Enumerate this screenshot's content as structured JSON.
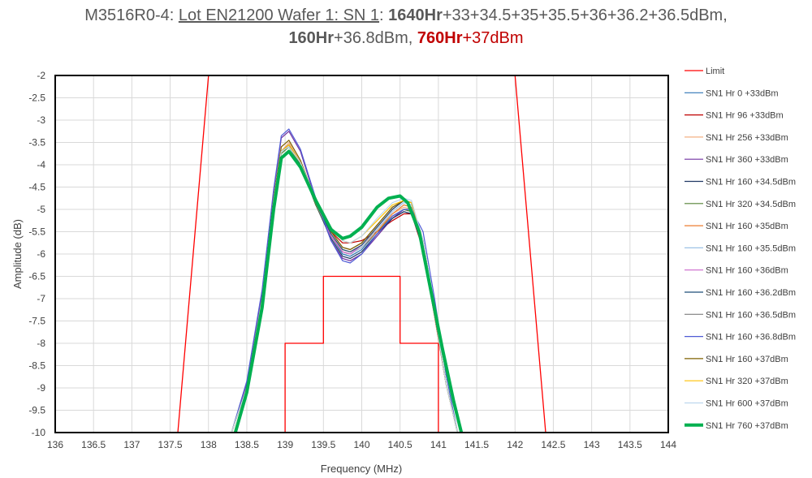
{
  "title": {
    "prefix": "M3516R0-4: ",
    "lot": "Lot EN21200 Wafer 1: SN 1",
    "sep": ": ",
    "hr1": "1640Hr",
    "rest1": "+33+34.5+35+35.5+36+36.2+36.5dBm,",
    "hr2": "160Hr",
    "rest2": "+36.8dBm, ",
    "hr3": "760Hr",
    "rest3": "+37dBm"
  },
  "chart_data": {
    "type": "line",
    "xlabel": "Frequency (MHz)",
    "ylabel": "Amplitude (dB)",
    "xlim": [
      136,
      144
    ],
    "ylim": [
      -10,
      -2
    ],
    "xticks": [
      "136",
      "136.5",
      "137",
      "137.5",
      "138",
      "138.5",
      "139",
      "139.5",
      "140",
      "140.5",
      "141",
      "141.5",
      "142",
      "142.5",
      "143",
      "143.5",
      "144"
    ],
    "yticks": [
      "-2",
      "-2.5",
      "-3",
      "-3.5",
      "-4",
      "-4.5",
      "-5",
      "-5.5",
      "-6",
      "-6.5",
      "-7",
      "-7.5",
      "-8",
      "-8.5",
      "-9",
      "-9.5",
      "-10"
    ],
    "grid": true,
    "legend_position": "right",
    "series": [
      {
        "name": "Limit",
        "color": "#ff0000",
        "width": 1.3,
        "x": [
          137.6,
          138.0,
          142.0,
          142.4
        ],
        "y": [
          -10,
          -2,
          -2,
          -10
        ]
      },
      {
        "name": "Limit",
        "color": "#ff0000",
        "width": 1.3,
        "legend": false,
        "x": [
          139.0,
          139.0,
          139.5,
          139.5,
          140.5,
          140.5,
          141.0,
          141.0
        ],
        "y": [
          -10,
          -8,
          -8,
          -6.5,
          -6.5,
          -8,
          -8,
          -10
        ]
      },
      {
        "name": "SN1 Hr 0 +33dBm",
        "color": "#2e75b6",
        "width": 1.2,
        "x": [
          138.3,
          138.5,
          138.7,
          138.85,
          138.95,
          139.05,
          139.2,
          139.4,
          139.6,
          139.75,
          139.85,
          140.0,
          140.2,
          140.4,
          140.55,
          140.65,
          140.8,
          140.95,
          141.1,
          141.25
        ],
        "y": [
          -10,
          -9.0,
          -7.0,
          -4.8,
          -3.7,
          -3.6,
          -4.0,
          -4.9,
          -5.6,
          -6.0,
          -6.05,
          -5.9,
          -5.5,
          -5.2,
          -5.05,
          -5.1,
          -5.8,
          -7.3,
          -8.9,
          -10
        ]
      },
      {
        "name": "SN1 Hr 96 +33dBm",
        "color": "#c00000",
        "width": 1.2,
        "x": [
          138.3,
          138.5,
          138.7,
          138.85,
          138.95,
          139.05,
          139.2,
          139.4,
          139.6,
          139.75,
          139.85,
          140.0,
          140.2,
          140.4,
          140.55,
          140.65,
          140.8,
          140.95,
          141.1,
          141.25
        ],
        "y": [
          -10,
          -9.0,
          -7.0,
          -4.8,
          -3.7,
          -3.55,
          -3.95,
          -4.9,
          -5.5,
          -5.75,
          -5.75,
          -5.7,
          -5.5,
          -5.25,
          -5.1,
          -5.1,
          -5.9,
          -7.4,
          -8.9,
          -10
        ]
      },
      {
        "name": "SN1 Hr 256 +33dBm",
        "color": "#f4b183",
        "width": 1.2,
        "x": [
          138.3,
          138.5,
          138.7,
          138.85,
          138.95,
          139.05,
          139.2,
          139.4,
          139.6,
          139.75,
          139.85,
          140.0,
          140.2,
          140.4,
          140.55,
          140.65,
          140.8,
          140.95,
          141.1,
          141.25
        ],
        "y": [
          -10,
          -9.0,
          -7.0,
          -4.8,
          -3.7,
          -3.5,
          -3.95,
          -4.9,
          -5.6,
          -5.9,
          -5.95,
          -5.8,
          -5.45,
          -5.1,
          -4.95,
          -5.0,
          -5.8,
          -7.4,
          -8.9,
          -10
        ]
      },
      {
        "name": "SN1 Hr 360 +33dBm",
        "color": "#7030a0",
        "width": 1.2,
        "x": [
          138.3,
          138.5,
          138.7,
          138.85,
          138.95,
          139.05,
          139.2,
          139.4,
          139.6,
          139.75,
          139.85,
          140.0,
          140.2,
          140.4,
          140.55,
          140.65,
          140.8,
          140.95,
          141.1,
          141.25
        ],
        "y": [
          -10,
          -8.9,
          -6.9,
          -4.6,
          -3.4,
          -3.25,
          -3.7,
          -4.8,
          -5.7,
          -6.1,
          -6.15,
          -6.0,
          -5.6,
          -5.2,
          -5.0,
          -5.05,
          -5.8,
          -7.3,
          -8.9,
          -10
        ]
      },
      {
        "name": "SN1 Hr 160 +34.5dBm",
        "color": "#203864",
        "width": 1.2,
        "x": [
          138.3,
          138.5,
          138.7,
          138.85,
          138.95,
          139.05,
          139.2,
          139.4,
          139.6,
          139.75,
          139.85,
          140.0,
          140.2,
          140.4,
          140.55,
          140.65,
          140.8,
          140.95,
          141.1,
          141.25
        ],
        "y": [
          -10,
          -9.0,
          -7.0,
          -4.8,
          -3.7,
          -3.55,
          -4.0,
          -4.9,
          -5.65,
          -6.05,
          -6.1,
          -5.95,
          -5.55,
          -5.2,
          -5.05,
          -5.1,
          -5.85,
          -7.35,
          -8.9,
          -10
        ]
      },
      {
        "name": "SN1 Hr 320 +34.5dBm",
        "color": "#548235",
        "width": 1.2,
        "x": [
          138.3,
          138.5,
          138.7,
          138.85,
          138.95,
          139.05,
          139.2,
          139.4,
          139.6,
          139.75,
          139.85,
          140.0,
          140.2,
          140.4,
          140.55,
          140.65,
          140.8,
          140.95,
          141.1,
          141.25
        ],
        "y": [
          -10,
          -9.0,
          -7.0,
          -4.85,
          -3.75,
          -3.6,
          -4.0,
          -4.9,
          -5.6,
          -5.95,
          -6.0,
          -5.85,
          -5.5,
          -5.15,
          -5.0,
          -5.05,
          -5.8,
          -7.3,
          -8.9,
          -10
        ]
      },
      {
        "name": "SN1 Hr 160 +35dBm",
        "color": "#ed7d31",
        "width": 1.2,
        "x": [
          138.3,
          138.5,
          138.7,
          138.85,
          138.95,
          139.05,
          139.2,
          139.4,
          139.6,
          139.75,
          139.85,
          140.0,
          140.2,
          140.4,
          140.55,
          140.65,
          140.8,
          140.95,
          141.1,
          141.25
        ],
        "y": [
          -10,
          -9.0,
          -7.0,
          -4.8,
          -3.7,
          -3.55,
          -3.95,
          -4.85,
          -5.6,
          -5.95,
          -6.0,
          -5.85,
          -5.5,
          -5.1,
          -4.9,
          -4.95,
          -5.75,
          -7.3,
          -8.9,
          -10
        ]
      },
      {
        "name": "SN1 Hr 160 +35.5dBm",
        "color": "#9dc3e6",
        "width": 1.2,
        "x": [
          138.3,
          138.5,
          138.7,
          138.85,
          138.95,
          139.05,
          139.2,
          139.4,
          139.6,
          139.75,
          139.85,
          140.0,
          140.2,
          140.4,
          140.55,
          140.65,
          140.8,
          140.95,
          141.1,
          141.25
        ],
        "y": [
          -10,
          -9.0,
          -7.0,
          -4.8,
          -3.7,
          -3.55,
          -3.95,
          -4.85,
          -5.6,
          -5.95,
          -6.0,
          -5.85,
          -5.45,
          -5.05,
          -4.85,
          -4.9,
          -5.75,
          -7.3,
          -8.9,
          -10
        ]
      },
      {
        "name": "SN1 Hr 160 +36dBm",
        "color": "#cc66cc",
        "width": 1.2,
        "x": [
          138.3,
          138.5,
          138.7,
          138.85,
          138.95,
          139.05,
          139.2,
          139.4,
          139.6,
          139.75,
          139.85,
          140.0,
          140.2,
          140.4,
          140.55,
          140.65,
          140.8,
          140.95,
          141.1,
          141.25
        ],
        "y": [
          -10,
          -9.0,
          -7.0,
          -4.8,
          -3.7,
          -3.55,
          -3.95,
          -4.85,
          -5.6,
          -5.95,
          -6.0,
          -5.8,
          -5.4,
          -5.0,
          -4.8,
          -4.85,
          -5.7,
          -7.3,
          -8.9,
          -10
        ]
      },
      {
        "name": "SN1 Hr 160 +36.2dBm",
        "color": "#1f4e79",
        "width": 1.2,
        "x": [
          138.3,
          138.5,
          138.7,
          138.85,
          138.95,
          139.05,
          139.2,
          139.4,
          139.6,
          139.75,
          139.85,
          140.0,
          140.2,
          140.4,
          140.55,
          140.65,
          140.8,
          140.95,
          141.1,
          141.25
        ],
        "y": [
          -10,
          -9.0,
          -7.0,
          -4.8,
          -3.7,
          -3.55,
          -3.95,
          -4.85,
          -5.55,
          -5.9,
          -5.95,
          -5.8,
          -5.4,
          -5.0,
          -4.8,
          -4.85,
          -5.7,
          -7.3,
          -8.9,
          -10
        ]
      },
      {
        "name": "SN1 Hr 160 +36.5dBm",
        "color": "#7f7f7f",
        "width": 1.2,
        "x": [
          138.3,
          138.5,
          138.7,
          138.85,
          138.95,
          139.05,
          139.2,
          139.4,
          139.6,
          139.75,
          139.85,
          140.0,
          140.2,
          140.4,
          140.55,
          140.65,
          140.8,
          140.95,
          141.1,
          141.25
        ],
        "y": [
          -10,
          -9.0,
          -7.0,
          -4.8,
          -3.7,
          -3.55,
          -3.95,
          -4.8,
          -5.5,
          -5.85,
          -5.9,
          -5.75,
          -5.35,
          -4.95,
          -4.8,
          -4.85,
          -5.7,
          -7.3,
          -8.9,
          -10
        ]
      },
      {
        "name": "SN1 Hr 160 +36.8dBm",
        "color": "#4f5bd5",
        "width": 1.2,
        "x": [
          138.3,
          138.5,
          138.7,
          138.85,
          138.95,
          139.05,
          139.2,
          139.4,
          139.6,
          139.75,
          139.85,
          140.0,
          140.2,
          140.4,
          140.55,
          140.65,
          140.8,
          140.95,
          141.1,
          141.25
        ],
        "y": [
          -10,
          -8.85,
          -6.8,
          -4.55,
          -3.35,
          -3.2,
          -3.65,
          -4.75,
          -5.7,
          -6.15,
          -6.2,
          -6.0,
          -5.55,
          -5.15,
          -5.0,
          -5.0,
          -5.5,
          -7.0,
          -8.7,
          -10
        ]
      },
      {
        "name": "SN1 Hr 160 +37dBm",
        "color": "#7f6000",
        "width": 1.2,
        "x": [
          138.3,
          138.5,
          138.7,
          138.85,
          138.95,
          139.05,
          139.2,
          139.4,
          139.6,
          139.75,
          139.85,
          140.0,
          140.2,
          140.4,
          140.55,
          140.65,
          140.8,
          140.95,
          141.1,
          141.25
        ],
        "y": [
          -10,
          -9.0,
          -7.0,
          -4.75,
          -3.6,
          -3.45,
          -3.9,
          -4.8,
          -5.5,
          -5.85,
          -5.9,
          -5.75,
          -5.35,
          -4.95,
          -4.8,
          -4.85,
          -5.7,
          -7.3,
          -8.9,
          -10
        ]
      },
      {
        "name": "SN1 Hr 320 +37dBm",
        "color": "#ffc000",
        "width": 1.2,
        "x": [
          138.3,
          138.5,
          138.7,
          138.85,
          138.95,
          139.05,
          139.2,
          139.4,
          139.6,
          139.75,
          139.85,
          140.0,
          140.2,
          140.4,
          140.55,
          140.65,
          140.8,
          140.95,
          141.1,
          141.25
        ],
        "y": [
          -10,
          -9.0,
          -7.0,
          -4.8,
          -3.7,
          -3.55,
          -3.95,
          -4.75,
          -5.4,
          -5.7,
          -5.75,
          -5.6,
          -5.25,
          -4.9,
          -4.8,
          -4.85,
          -5.7,
          -7.3,
          -8.9,
          -10
        ]
      },
      {
        "name": "SN1 Hr 600 +37dBm",
        "color": "#bdd7ee",
        "width": 1.2,
        "x": [
          138.3,
          138.5,
          138.7,
          138.85,
          138.95,
          139.05,
          139.2,
          139.4,
          139.6,
          139.75,
          139.85,
          140.0,
          140.2,
          140.4,
          140.55,
          140.65,
          140.8,
          140.95,
          141.1,
          141.25
        ],
        "y": [
          -10,
          -9.0,
          -7.0,
          -4.8,
          -3.7,
          -3.6,
          -3.95,
          -4.75,
          -5.4,
          -5.7,
          -5.75,
          -5.6,
          -5.2,
          -4.85,
          -4.75,
          -4.8,
          -5.7,
          -7.3,
          -8.9,
          -10
        ]
      },
      {
        "name": "SN1 Hr 760 +37dBm",
        "color": "#00b050",
        "width": 4,
        "x": [
          138.35,
          138.5,
          138.7,
          138.85,
          138.95,
          139.05,
          139.2,
          139.4,
          139.6,
          139.75,
          139.85,
          140.0,
          140.2,
          140.35,
          140.5,
          140.6,
          140.75,
          140.9,
          141.05,
          141.2,
          141.3
        ],
        "y": [
          -10,
          -9.1,
          -7.2,
          -5.0,
          -3.85,
          -3.7,
          -4.05,
          -4.8,
          -5.45,
          -5.65,
          -5.6,
          -5.4,
          -4.95,
          -4.75,
          -4.7,
          -4.85,
          -5.5,
          -6.8,
          -8.1,
          -9.3,
          -10
        ]
      }
    ]
  }
}
